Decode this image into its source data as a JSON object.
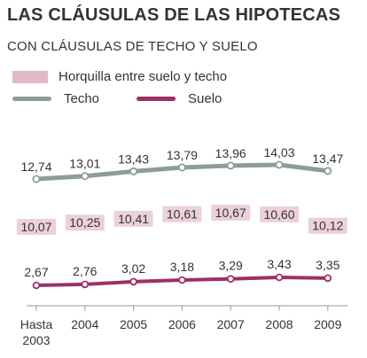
{
  "title": "LAS CLÁUSULAS DE LAS HIPOTECAS",
  "subtitle": "CON CLÁUSULAS DE TECHO Y SUELO",
  "legend": {
    "band": "Horquilla entre suelo y techo",
    "techo": "Techo",
    "suelo": "Suelo"
  },
  "colors": {
    "techo": "#8e9c98",
    "suelo": "#9e2f62",
    "band": "#ecd0dc",
    "band_swatch": "#e2b7c9",
    "text": "#333333"
  },
  "chart_data": {
    "type": "line",
    "title": "LAS CLÁUSULAS DE LAS HIPOTECAS",
    "subtitle": "CON CLÁUSULAS DE TECHO Y SUELO",
    "categories": [
      "Hasta 2003",
      "2004",
      "2005",
      "2006",
      "2007",
      "2008",
      "2009"
    ],
    "category_labels": [
      [
        "Hasta",
        "2003"
      ],
      [
        "2004"
      ],
      [
        "2005"
      ],
      [
        "2006"
      ],
      [
        "2007"
      ],
      [
        "2008"
      ],
      [
        "2009"
      ]
    ],
    "series": [
      {
        "name": "Techo",
        "values": [
          12.74,
          13.01,
          13.43,
          13.79,
          13.96,
          14.03,
          13.47
        ],
        "labels": [
          "12,74",
          "13,01",
          "13,43",
          "13,79",
          "13,96",
          "14,03",
          "13,47"
        ]
      },
      {
        "name": "Suelo",
        "values": [
          2.67,
          2.76,
          3.02,
          3.18,
          3.29,
          3.43,
          3.35
        ],
        "labels": [
          "2,67",
          "2,76",
          "3,02",
          "3,18",
          "3,29",
          "3,43",
          "3,35"
        ]
      }
    ],
    "band": {
      "name": "Horquilla entre suelo y techo",
      "values": [
        10.07,
        10.25,
        10.41,
        10.61,
        10.67,
        10.6,
        10.12
      ],
      "labels": [
        "10,07",
        "10,25",
        "10,41",
        "10,61",
        "10,67",
        "10,60",
        "10,12"
      ]
    },
    "xlabel": "",
    "ylabel": "",
    "grid": false,
    "legend_position": "top-left"
  }
}
